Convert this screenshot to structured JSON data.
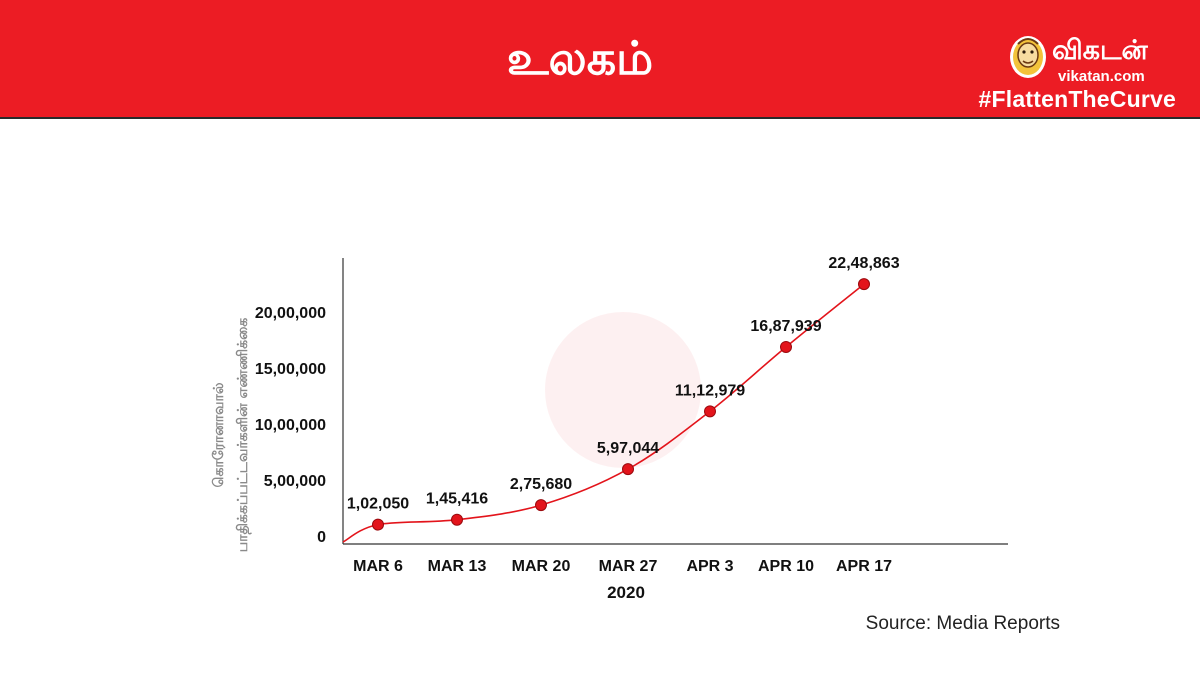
{
  "header": {
    "title": "உலகம்",
    "brand_word": "விகடன்",
    "brand_url": "vikatan.com",
    "hashtag": "#FlattenTheCurve",
    "background": "#ec1c24"
  },
  "source_text": "Source: Media Reports",
  "chart_data": {
    "type": "line",
    "title": "",
    "xlabel": "2020",
    "ylabel_lines": [
      "கொரோனாவால்",
      "பாதிக்கப்பட்டவர்களின் எண்ணிக்கை"
    ],
    "categories": [
      "MAR 6",
      "MAR 13",
      "MAR 20",
      "MAR 27",
      "APR 3",
      "APR 10",
      "APR 17"
    ],
    "values": [
      102050,
      145416,
      275680,
      597044,
      1112979,
      1687939,
      2248863
    ],
    "value_labels": [
      "1,02,050",
      "1,45,416",
      "2,75,680",
      "5,97,044",
      "11,12,979",
      "16,87,939",
      "22,48,863"
    ],
    "y_ticks": [
      0,
      500000,
      1000000,
      1500000,
      2000000
    ],
    "y_tick_labels": [
      "0",
      "5,00,000",
      "10,00,000",
      "15,00,000",
      "20,00,000"
    ],
    "ylim": [
      0,
      2500000
    ],
    "grid": false,
    "line_color": "#e3141b",
    "axis_color": "#333333"
  }
}
